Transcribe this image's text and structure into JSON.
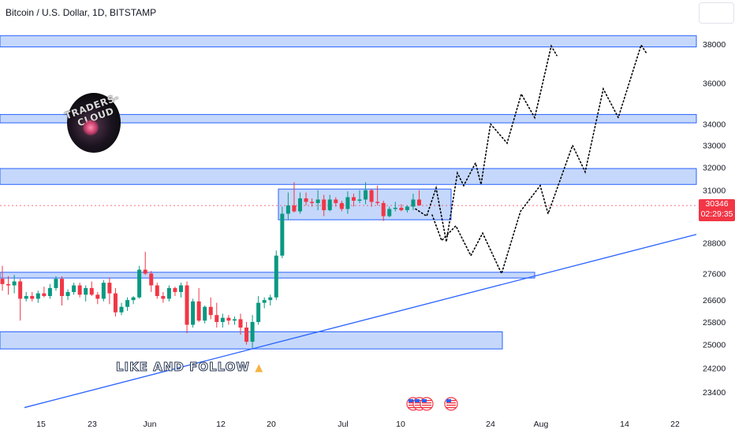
{
  "header": {
    "title": "Bitcoin / U.S. Dollar, 1D, BITSTAMP"
  },
  "price_badge": {
    "price": "30346",
    "countdown": "02:29:35",
    "color": "#f23645"
  },
  "logo": {
    "text": "TRADERS-CLOUD"
  },
  "annotation": {
    "text": "LIKE AND FOLLOW",
    "icon": "thumbs-up-icon"
  },
  "colors": {
    "up": "#089981",
    "down": "#f23645",
    "zone_fill": "#bbd1fa",
    "zone_stroke": "#2962ff",
    "trendline": "#2962ff",
    "projection": "#000000"
  },
  "chart_data": {
    "type": "candlestick",
    "title": "Bitcoin / U.S. Dollar, 1D, BITSTAMP",
    "y_axis": {
      "scale": "log",
      "ticks": [
        38000,
        36000,
        34000,
        33000,
        32000,
        31000,
        28800,
        27600,
        26600,
        25800,
        25000,
        24200,
        23400
      ],
      "range": [
        22850,
        39500
      ]
    },
    "x_axis": {
      "ticks": [
        "15",
        "23",
        "Jun",
        "12",
        "20",
        "Jul",
        "10",
        "24",
        "Aug",
        "14",
        "22"
      ]
    },
    "last_price": 30346,
    "candles": [
      [
        27400,
        27900,
        26950,
        27200
      ],
      [
        27200,
        27500,
        26800,
        27150
      ],
      [
        27150,
        27550,
        26850,
        27300
      ],
      [
        27300,
        27400,
        25850,
        26650
      ],
      [
        26650,
        26900,
        26550,
        26750
      ],
      [
        26750,
        26900,
        26550,
        26650
      ],
      [
        26650,
        26950,
        26500,
        26850
      ],
      [
        26850,
        27100,
        26700,
        26750
      ],
      [
        26750,
        27200,
        26650,
        27050
      ],
      [
        27050,
        27500,
        26950,
        27400
      ],
      [
        27400,
        27500,
        26400,
        26750
      ],
      [
        26750,
        27000,
        26600,
        26900
      ],
      [
        26900,
        27250,
        26800,
        27150
      ],
      [
        27150,
        27250,
        26700,
        26800
      ],
      [
        26800,
        27150,
        26550,
        27050
      ],
      [
        27050,
        27300,
        26750,
        26800
      ],
      [
        26800,
        26900,
        26450,
        26650
      ],
      [
        26650,
        27350,
        26550,
        27250
      ],
      [
        27250,
        27450,
        26450,
        26850
      ],
      [
        26850,
        27050,
        26000,
        26150
      ],
      [
        26150,
        26500,
        26050,
        26350
      ],
      [
        26350,
        26700,
        26200,
        26600
      ],
      [
        26600,
        26750,
        26450,
        26700
      ],
      [
        26700,
        27900,
        26650,
        27750
      ],
      [
        27750,
        28450,
        27550,
        27600
      ],
      [
        27600,
        27700,
        26900,
        27150
      ],
      [
        27150,
        27250,
        26650,
        26750
      ],
      [
        26750,
        26900,
        26500,
        26650
      ],
      [
        26650,
        27150,
        26550,
        27050
      ],
      [
        27050,
        27100,
        26750,
        26900
      ],
      [
        26900,
        27250,
        26700,
        27150
      ],
      [
        27150,
        27300,
        25400,
        25700
      ],
      [
        25700,
        26650,
        25600,
        26550
      ],
      [
        26550,
        27050,
        25800,
        25850
      ],
      [
        25850,
        26400,
        25750,
        26350
      ],
      [
        26350,
        26700,
        25900,
        26050
      ],
      [
        26050,
        26500,
        25600,
        25800
      ],
      [
        25800,
        26100,
        25600,
        25950
      ],
      [
        25950,
        26050,
        25700,
        25850
      ],
      [
        25850,
        26000,
        25700,
        25900
      ],
      [
        25900,
        26100,
        25350,
        25600
      ],
      [
        25600,
        25800,
        25000,
        25100
      ],
      [
        25100,
        26050,
        24850,
        25800
      ],
      [
        25800,
        26750,
        25700,
        26500
      ],
      [
        26500,
        26700,
        26300,
        26600
      ],
      [
        26600,
        26800,
        26400,
        26700
      ],
      [
        26700,
        28500,
        26600,
        28300
      ],
      [
        28300,
        30300,
        28200,
        30000
      ],
      [
        30000,
        30900,
        29750,
        30350
      ],
      [
        30350,
        31350,
        30050,
        30100
      ],
      [
        30100,
        30900,
        30000,
        30650
      ],
      [
        30650,
        30900,
        30350,
        30500
      ],
      [
        30500,
        30650,
        30300,
        30450
      ],
      [
        30450,
        31000,
        30150,
        30600
      ],
      [
        30600,
        30800,
        29900,
        30150
      ],
      [
        30150,
        30800,
        30100,
        30600
      ],
      [
        30600,
        30700,
        30300,
        30450
      ],
      [
        30450,
        30550,
        30100,
        30200
      ],
      [
        30200,
        30950,
        30000,
        30700
      ],
      [
        30700,
        30850,
        30300,
        30550
      ],
      [
        30550,
        31000,
        30450,
        30600
      ],
      [
        30600,
        31350,
        30400,
        31000
      ],
      [
        31000,
        31050,
        30300,
        30500
      ],
      [
        30500,
        31200,
        30350,
        30450
      ],
      [
        30450,
        30550,
        29700,
        29900
      ],
      [
        29900,
        30300,
        29850,
        30200
      ],
      [
        30200,
        30500,
        30100,
        30250
      ],
      [
        30250,
        30400,
        30100,
        30150
      ],
      [
        30150,
        30350,
        30050,
        30300
      ],
      [
        30300,
        30850,
        30150,
        30600
      ],
      [
        30600,
        31000,
        30400,
        30350
      ]
    ],
    "zones": [
      {
        "from": 37850,
        "to": 38450
      },
      {
        "from": 34050,
        "to": 34450
      },
      {
        "from": 31250,
        "to": 31950
      },
      {
        "from": 29750,
        "to": 31050
      },
      {
        "from": 27430,
        "to": 27650
      },
      {
        "from": 24850,
        "to": 25450
      }
    ],
    "trendline": {
      "from": 22900,
      "to": 29150
    },
    "projection": [
      30050,
      31150,
      29150,
      30100,
      28300,
      29250,
      27650,
      29950,
      32400,
      31600,
      33950,
      32850,
      35100,
      34200,
      37950,
      37700,
      29600,
      33150,
      31750,
      35300,
      34100,
      38000,
      37700
    ]
  }
}
